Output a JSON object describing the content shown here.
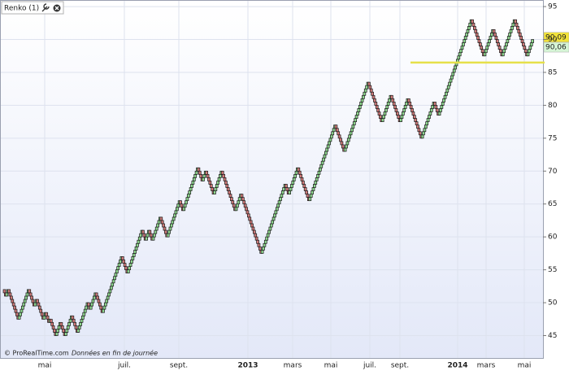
{
  "chart_data": {
    "type": "renko",
    "title": "Renko (1)",
    "footer_brand": "© ProRealTime.com",
    "footer_note": "Données en fin de journée",
    "brick_size": 0.5,
    "pivots": [
      52,
      51,
      52,
      47.5,
      52,
      49.5,
      50.5,
      47.5,
      48.5,
      47,
      47.5,
      45,
      47,
      45,
      48,
      45.5,
      50,
      49,
      51.5,
      48.5,
      57,
      54.5,
      61,
      59.5,
      61,
      59.5,
      63,
      60,
      65.5,
      64,
      70.5,
      68.5,
      70,
      66.5,
      70,
      64,
      66.5,
      57.5,
      68,
      66.5,
      70.5,
      65.5,
      77,
      73,
      83.5,
      77.5,
      81.5,
      77.5,
      81,
      75,
      80.5,
      78.5,
      93,
      87.5,
      91.5,
      87.5,
      93,
      87.5,
      90
    ],
    "up_color": "#8fd88f",
    "down_color": "#d07a7a",
    "x_labels": [
      "mai",
      "juil.",
      "sept.",
      "2013",
      "mars",
      "mai",
      "juil.",
      "sept.",
      "2014",
      "mars",
      "mai"
    ],
    "ylim": [
      41.6,
      96
    ],
    "yticks": [
      45,
      50,
      55,
      60,
      65,
      70,
      75,
      80,
      85,
      90,
      95
    ],
    "grid": true,
    "level": 86.5,
    "level_color": "#e6e04a",
    "price_labels": [
      {
        "value": 90.09,
        "label": "90,09",
        "color": "#f2e33a"
      },
      {
        "value": 90.06,
        "label": "90,06",
        "color": "#d6f5d6"
      }
    ]
  }
}
